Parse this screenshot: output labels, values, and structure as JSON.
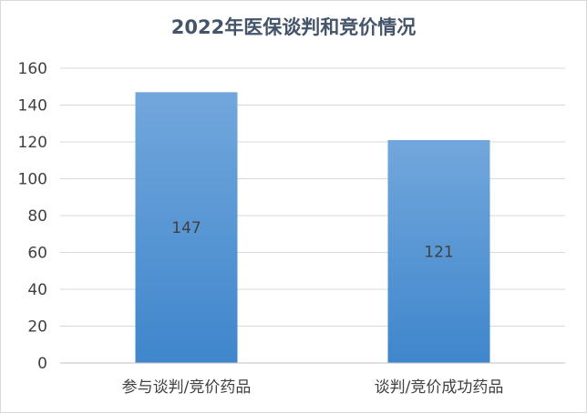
{
  "chart_data": {
    "type": "bar",
    "title": "2022年医保谈判和竞价情况",
    "categories": [
      "参与谈判/竞价药品",
      "谈判/竞价成功药品"
    ],
    "values": [
      147,
      121
    ],
    "data_labels": [
      "147",
      "121"
    ],
    "ylim": [
      0,
      160
    ],
    "yticks": [
      0,
      20,
      40,
      60,
      80,
      100,
      120,
      140,
      160
    ],
    "grid": true,
    "legend": "none",
    "colors": {
      "bar_top": "#72a7dc",
      "bar_bottom": "#3f86cc",
      "grid": "#d9d9d9",
      "axis": "#bfbfbf",
      "title": "#44546a",
      "text": "#404040"
    }
  }
}
